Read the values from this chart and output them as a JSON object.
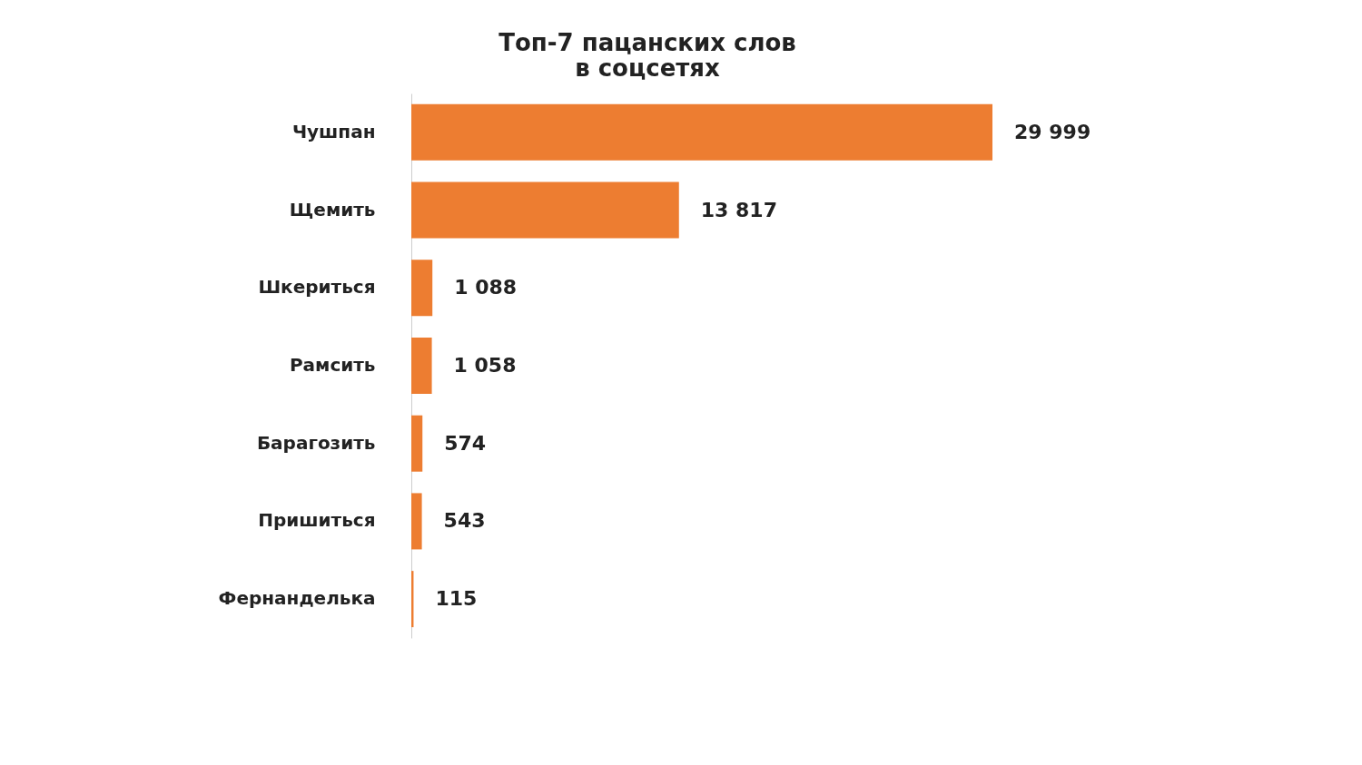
{
  "chart_data": {
    "type": "bar",
    "orientation": "horizontal",
    "title": "Топ-7 пацанских слов\nв соцсетях",
    "categories": [
      "Чушпан",
      "Щемить",
      "Шкериться",
      "Рамсить",
      "Барагозить",
      "Пришиться",
      "Фернанделька"
    ],
    "values": [
      29999,
      13817,
      1088,
      1058,
      574,
      543,
      115
    ],
    "value_labels": [
      "29 999",
      "13 817",
      "1 088",
      "1 058",
      "574",
      "543",
      "115"
    ],
    "color": "#ed7d31"
  }
}
